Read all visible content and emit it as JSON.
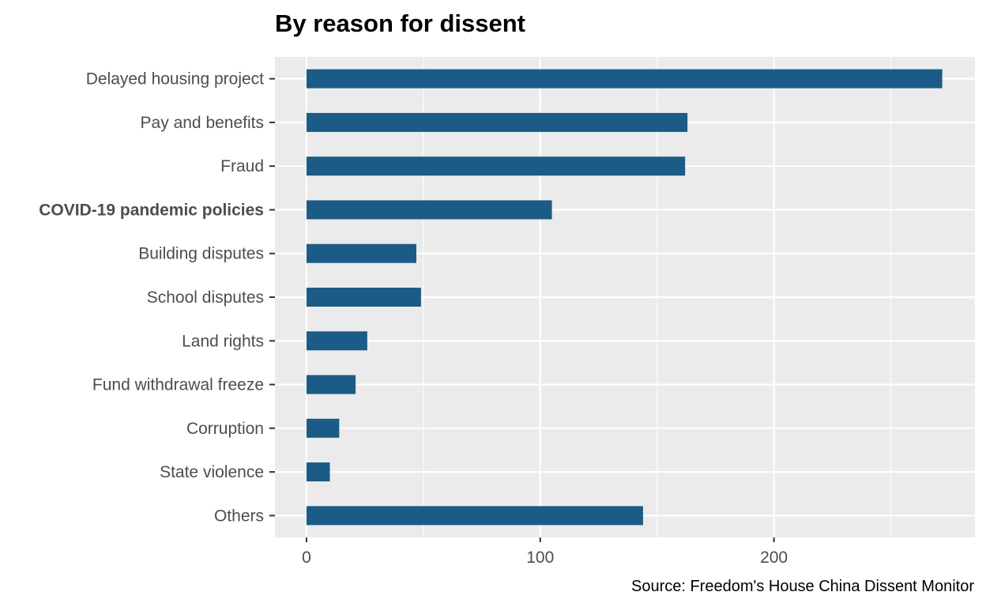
{
  "chart_data": {
    "type": "bar",
    "orientation": "horizontal",
    "title": "By reason for dissent",
    "caption": "Source: Freedom's House China Dissent Monitor",
    "xlabel": "",
    "ylabel": "",
    "categories": [
      "Delayed housing project",
      "Pay and benefits",
      "Fraud",
      "COVID-19 pandemic policies",
      "Building disputes",
      "School disputes",
      "Land rights",
      "Fund withdrawal freeze",
      "Corruption",
      "State violence",
      "Others"
    ],
    "highlighted_category": "COVID-19 pandemic policies",
    "values": [
      272,
      163,
      162,
      105,
      47,
      49,
      26,
      21,
      14,
      10,
      144
    ],
    "xlim": [
      -13.5,
      286
    ],
    "xticks": [
      0,
      100,
      200
    ],
    "grid": true,
    "bar_color": "#1a5c87",
    "panel_background": "#ebebeb"
  }
}
